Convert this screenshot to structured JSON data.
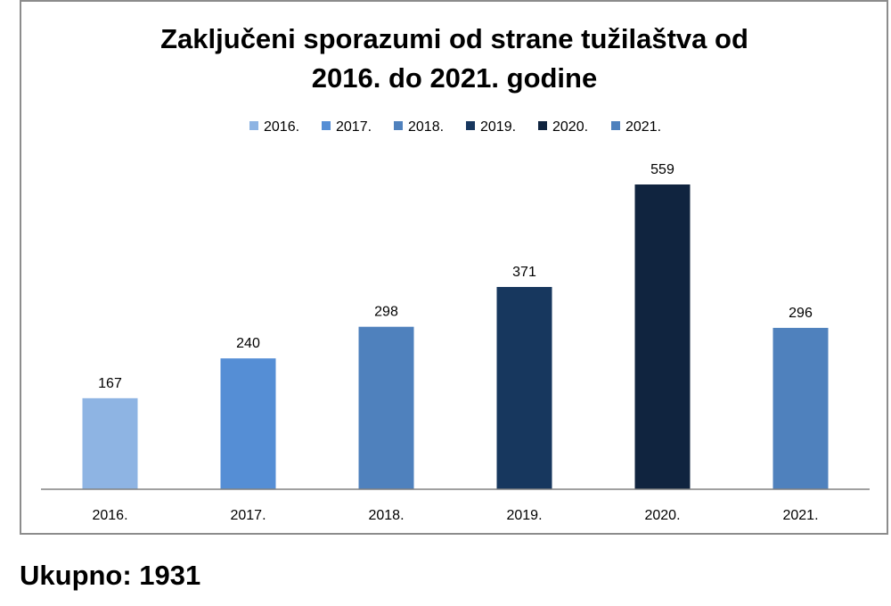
{
  "chart_data": {
    "type": "bar",
    "title_lines": [
      "Zaključeni sporazumi od strane tužilaštva od",
      "2016. do 2021. godine"
    ],
    "categories": [
      "2016.",
      "2017.",
      "2018.",
      "2019.",
      "2020.",
      "2021."
    ],
    "values": [
      167,
      240,
      298,
      371,
      559,
      296
    ],
    "colors": [
      "#8eb4e3",
      "#558ed5",
      "#4f81bd",
      "#17375e",
      "#10243f",
      "#4f81bd"
    ],
    "legend": [
      "2016.",
      "2017.",
      "2018.",
      "2019.",
      "2020.",
      "2021."
    ],
    "legend_position": "top",
    "xlabel": "",
    "ylabel": "",
    "ylim": [
      0,
      600
    ],
    "grid": false
  },
  "footer": {
    "total_label": "Ukupno: 1931"
  }
}
